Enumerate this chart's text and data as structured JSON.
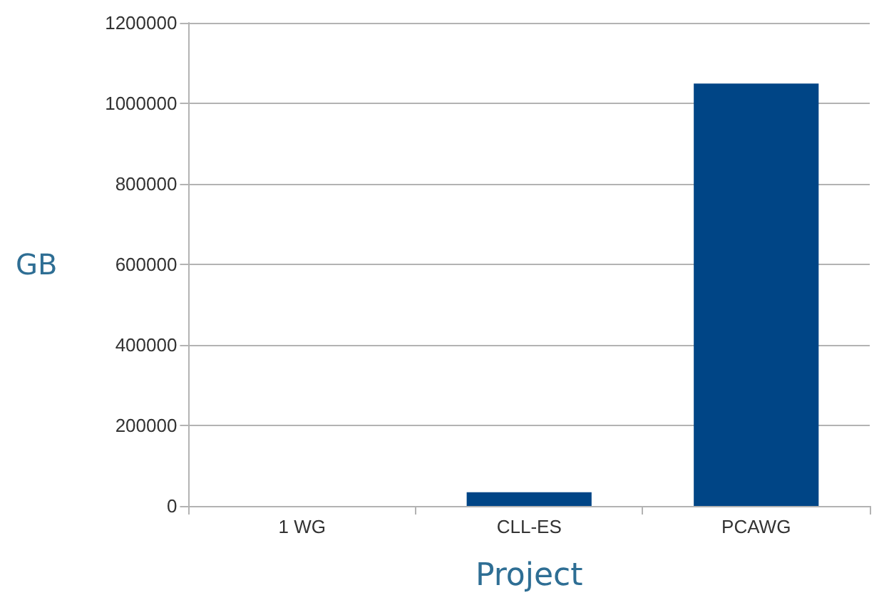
{
  "chart_data": {
    "type": "bar",
    "categories": [
      "1 WG",
      "CLL-ES",
      "PCAWG"
    ],
    "values": [
      0,
      34000,
      1049000
    ],
    "color": "#004586",
    "xlabel": "Project",
    "ylabel": "GB",
    "ylim": [
      0,
      1200000
    ],
    "yticks": [
      0,
      200000,
      400000,
      600000,
      800000,
      1000000,
      1200000
    ],
    "grid": "y"
  }
}
